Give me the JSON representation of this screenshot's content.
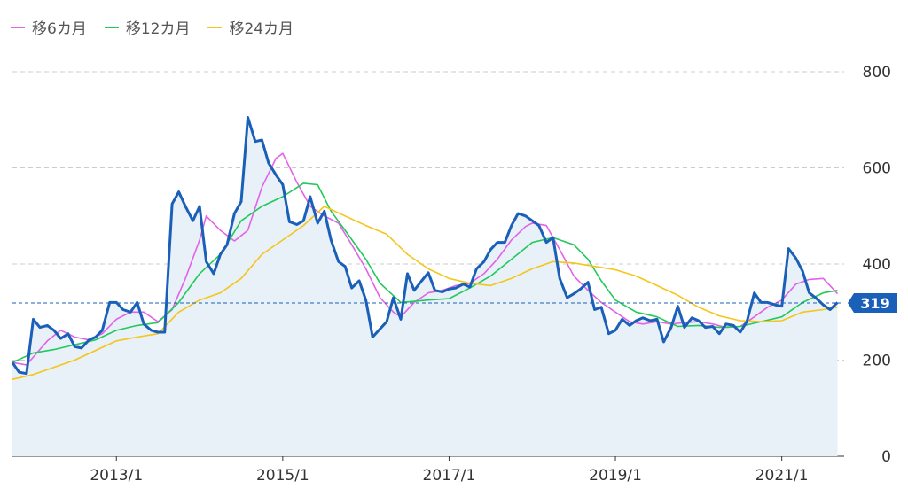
{
  "chart_data": {
    "type": "line",
    "legend": [
      {
        "label": "移6カ月",
        "color": "#e263e8"
      },
      {
        "label": "移12カ月",
        "color": "#21c95a"
      },
      {
        "label": "移24カ月",
        "color": "#f5c518"
      }
    ],
    "y_ticks": [
      0,
      200,
      400,
      600,
      800
    ],
    "ylim": [
      0,
      800
    ],
    "x_ticks": [
      {
        "label": "2013/1",
        "x": 2013.0
      },
      {
        "label": "2015/1",
        "x": 2015.0
      },
      {
        "label": "2017/1",
        "x": 2017.0
      },
      {
        "label": "2019/1",
        "x": 2019.0
      },
      {
        "label": "2021/1",
        "x": 2021.0
      }
    ],
    "xlim": [
      2011.75,
      2021.75
    ],
    "current_value": 319,
    "current_label": "319",
    "grid": true,
    "legend_position": "top-left",
    "colors": {
      "price": "#1a5fb8",
      "fill": "#e8f0f8",
      "grid": "#cccccc",
      "ref_line": "#1a5fb8"
    },
    "series": [
      {
        "role": "price",
        "points": [
          [
            2011.75,
            195
          ],
          [
            2011.83,
            175
          ],
          [
            2011.92,
            172
          ],
          [
            2012.0,
            285
          ],
          [
            2012.08,
            268
          ],
          [
            2012.17,
            272
          ],
          [
            2012.25,
            262
          ],
          [
            2012.33,
            245
          ],
          [
            2012.42,
            255
          ],
          [
            2012.5,
            228
          ],
          [
            2012.58,
            225
          ],
          [
            2012.67,
            242
          ],
          [
            2012.75,
            248
          ],
          [
            2012.83,
            262
          ],
          [
            2012.92,
            320
          ],
          [
            2013.0,
            320
          ],
          [
            2013.08,
            305
          ],
          [
            2013.17,
            300
          ],
          [
            2013.25,
            320
          ],
          [
            2013.33,
            275
          ],
          [
            2013.42,
            262
          ],
          [
            2013.5,
            258
          ],
          [
            2013.58,
            258
          ],
          [
            2013.67,
            525
          ],
          [
            2013.75,
            550
          ],
          [
            2013.83,
            520
          ],
          [
            2013.92,
            490
          ],
          [
            2014.0,
            520
          ],
          [
            2014.08,
            405
          ],
          [
            2014.17,
            380
          ],
          [
            2014.25,
            420
          ],
          [
            2014.33,
            440
          ],
          [
            2014.42,
            505
          ],
          [
            2014.5,
            530
          ],
          [
            2014.58,
            705
          ],
          [
            2014.67,
            655
          ],
          [
            2014.75,
            658
          ],
          [
            2014.83,
            610
          ],
          [
            2014.92,
            585
          ],
          [
            2015.0,
            565
          ],
          [
            2015.08,
            488
          ],
          [
            2015.17,
            482
          ],
          [
            2015.25,
            490
          ],
          [
            2015.33,
            540
          ],
          [
            2015.42,
            485
          ],
          [
            2015.5,
            510
          ],
          [
            2015.58,
            450
          ],
          [
            2015.67,
            405
          ],
          [
            2015.75,
            395
          ],
          [
            2015.83,
            350
          ],
          [
            2015.92,
            365
          ],
          [
            2016.0,
            325
          ],
          [
            2016.08,
            248
          ],
          [
            2016.17,
            265
          ],
          [
            2016.25,
            280
          ],
          [
            2016.33,
            330
          ],
          [
            2016.42,
            285
          ],
          [
            2016.5,
            380
          ],
          [
            2016.58,
            345
          ],
          [
            2016.67,
            365
          ],
          [
            2016.75,
            382
          ],
          [
            2016.83,
            345
          ],
          [
            2016.92,
            342
          ],
          [
            2017.0,
            348
          ],
          [
            2017.08,
            350
          ],
          [
            2017.17,
            358
          ],
          [
            2017.25,
            352
          ],
          [
            2017.33,
            390
          ],
          [
            2017.42,
            405
          ],
          [
            2017.5,
            430
          ],
          [
            2017.58,
            445
          ],
          [
            2017.67,
            445
          ],
          [
            2017.75,
            480
          ],
          [
            2017.83,
            505
          ],
          [
            2017.92,
            500
          ],
          [
            2018.0,
            490
          ],
          [
            2018.08,
            480
          ],
          [
            2018.17,
            445
          ],
          [
            2018.25,
            455
          ],
          [
            2018.33,
            370
          ],
          [
            2018.42,
            330
          ],
          [
            2018.5,
            338
          ],
          [
            2018.58,
            348
          ],
          [
            2018.67,
            362
          ],
          [
            2018.75,
            305
          ],
          [
            2018.83,
            310
          ],
          [
            2018.92,
            255
          ],
          [
            2019.0,
            262
          ],
          [
            2019.08,
            285
          ],
          [
            2019.17,
            272
          ],
          [
            2019.25,
            282
          ],
          [
            2019.33,
            288
          ],
          [
            2019.42,
            282
          ],
          [
            2019.5,
            285
          ],
          [
            2019.58,
            238
          ],
          [
            2019.67,
            268
          ],
          [
            2019.75,
            312
          ],
          [
            2019.83,
            268
          ],
          [
            2019.92,
            288
          ],
          [
            2020.0,
            282
          ],
          [
            2020.08,
            268
          ],
          [
            2020.17,
            270
          ],
          [
            2020.25,
            255
          ],
          [
            2020.33,
            275
          ],
          [
            2020.42,
            272
          ],
          [
            2020.5,
            258
          ],
          [
            2020.58,
            280
          ],
          [
            2020.67,
            340
          ],
          [
            2020.75,
            320
          ],
          [
            2020.83,
            320
          ],
          [
            2020.92,
            315
          ],
          [
            2021.0,
            312
          ],
          [
            2021.08,
            432
          ],
          [
            2021.17,
            412
          ],
          [
            2021.25,
            385
          ],
          [
            2021.33,
            340
          ],
          [
            2021.42,
            328
          ],
          [
            2021.5,
            315
          ],
          [
            2021.58,
            305
          ],
          [
            2021.67,
            320
          ]
        ]
      },
      {
        "name": "移6カ月",
        "color": "#e263e8",
        "points": [
          [
            2011.75,
            195
          ],
          [
            2011.92,
            190
          ],
          [
            2012.17,
            240
          ],
          [
            2012.33,
            262
          ],
          [
            2012.5,
            248
          ],
          [
            2012.67,
            242
          ],
          [
            2012.83,
            255
          ],
          [
            2013.0,
            285
          ],
          [
            2013.17,
            300
          ],
          [
            2013.33,
            300
          ],
          [
            2013.5,
            280
          ],
          [
            2013.67,
            305
          ],
          [
            2013.83,
            370
          ],
          [
            2014.0,
            450
          ],
          [
            2014.08,
            500
          ],
          [
            2014.25,
            470
          ],
          [
            2014.42,
            448
          ],
          [
            2014.58,
            470
          ],
          [
            2014.75,
            560
          ],
          [
            2014.92,
            620
          ],
          [
            2015.0,
            630
          ],
          [
            2015.17,
            570
          ],
          [
            2015.33,
            520
          ],
          [
            2015.5,
            500
          ],
          [
            2015.67,
            485
          ],
          [
            2015.83,
            440
          ],
          [
            2016.0,
            390
          ],
          [
            2016.17,
            330
          ],
          [
            2016.33,
            300
          ],
          [
            2016.42,
            290
          ],
          [
            2016.58,
            320
          ],
          [
            2016.75,
            340
          ],
          [
            2016.92,
            345
          ],
          [
            2017.08,
            355
          ],
          [
            2017.25,
            360
          ],
          [
            2017.42,
            380
          ],
          [
            2017.58,
            410
          ],
          [
            2017.75,
            450
          ],
          [
            2017.92,
            478
          ],
          [
            2018.0,
            485
          ],
          [
            2018.17,
            480
          ],
          [
            2018.33,
            430
          ],
          [
            2018.5,
            375
          ],
          [
            2018.67,
            345
          ],
          [
            2018.83,
            320
          ],
          [
            2019.0,
            300
          ],
          [
            2019.17,
            280
          ],
          [
            2019.33,
            275
          ],
          [
            2019.5,
            280
          ],
          [
            2019.67,
            275
          ],
          [
            2019.83,
            278
          ],
          [
            2020.0,
            280
          ],
          [
            2020.17,
            275
          ],
          [
            2020.33,
            268
          ],
          [
            2020.5,
            270
          ],
          [
            2020.67,
            290
          ],
          [
            2020.83,
            310
          ],
          [
            2021.0,
            325
          ],
          [
            2021.17,
            358
          ],
          [
            2021.33,
            368
          ],
          [
            2021.5,
            370
          ],
          [
            2021.67,
            338
          ]
        ]
      },
      {
        "name": "移12カ月",
        "color": "#21c95a",
        "points": [
          [
            2011.75,
            195
          ],
          [
            2012.0,
            215
          ],
          [
            2012.25,
            222
          ],
          [
            2012.5,
            232
          ],
          [
            2012.75,
            242
          ],
          [
            2013.0,
            262
          ],
          [
            2013.25,
            272
          ],
          [
            2013.5,
            278
          ],
          [
            2013.75,
            320
          ],
          [
            2014.0,
            380
          ],
          [
            2014.25,
            420
          ],
          [
            2014.5,
            490
          ],
          [
            2014.75,
            520
          ],
          [
            2015.0,
            540
          ],
          [
            2015.25,
            568
          ],
          [
            2015.42,
            565
          ],
          [
            2015.58,
            510
          ],
          [
            2015.75,
            470
          ],
          [
            2016.0,
            410
          ],
          [
            2016.17,
            360
          ],
          [
            2016.42,
            320
          ],
          [
            2016.75,
            325
          ],
          [
            2017.0,
            328
          ],
          [
            2017.25,
            350
          ],
          [
            2017.5,
            375
          ],
          [
            2017.75,
            410
          ],
          [
            2018.0,
            445
          ],
          [
            2018.25,
            455
          ],
          [
            2018.5,
            440
          ],
          [
            2018.67,
            410
          ],
          [
            2018.83,
            365
          ],
          [
            2019.0,
            325
          ],
          [
            2019.25,
            300
          ],
          [
            2019.5,
            290
          ],
          [
            2019.75,
            270
          ],
          [
            2020.0,
            272
          ],
          [
            2020.25,
            268
          ],
          [
            2020.5,
            270
          ],
          [
            2020.75,
            280
          ],
          [
            2021.0,
            290
          ],
          [
            2021.25,
            320
          ],
          [
            2021.5,
            340
          ],
          [
            2021.67,
            345
          ]
        ]
      },
      {
        "name": "移24カ月",
        "color": "#f5c518",
        "points": [
          [
            2011.75,
            160
          ],
          [
            2012.0,
            170
          ],
          [
            2012.25,
            185
          ],
          [
            2012.5,
            200
          ],
          [
            2012.75,
            220
          ],
          [
            2013.0,
            240
          ],
          [
            2013.25,
            248
          ],
          [
            2013.5,
            255
          ],
          [
            2013.75,
            300
          ],
          [
            2014.0,
            325
          ],
          [
            2014.25,
            340
          ],
          [
            2014.5,
            370
          ],
          [
            2014.75,
            420
          ],
          [
            2015.0,
            450
          ],
          [
            2015.25,
            480
          ],
          [
            2015.5,
            520
          ],
          [
            2015.75,
            500
          ],
          [
            2016.0,
            480
          ],
          [
            2016.25,
            462
          ],
          [
            2016.5,
            420
          ],
          [
            2016.75,
            390
          ],
          [
            2017.0,
            370
          ],
          [
            2017.25,
            360
          ],
          [
            2017.5,
            355
          ],
          [
            2017.75,
            370
          ],
          [
            2018.0,
            390
          ],
          [
            2018.25,
            405
          ],
          [
            2018.5,
            402
          ],
          [
            2018.75,
            395
          ],
          [
            2019.0,
            388
          ],
          [
            2019.25,
            375
          ],
          [
            2019.5,
            355
          ],
          [
            2019.75,
            335
          ],
          [
            2020.0,
            310
          ],
          [
            2020.25,
            292
          ],
          [
            2020.5,
            282
          ],
          [
            2020.75,
            280
          ],
          [
            2021.0,
            282
          ],
          [
            2021.25,
            300
          ],
          [
            2021.5,
            305
          ],
          [
            2021.67,
            310
          ]
        ]
      }
    ]
  }
}
